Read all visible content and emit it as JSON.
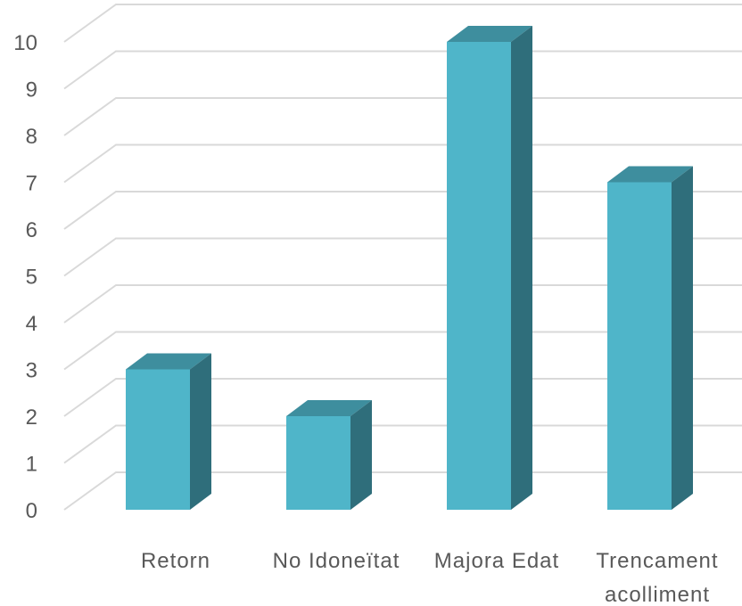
{
  "chart_data": {
    "type": "bar",
    "style": "3d-column",
    "title": "",
    "xlabel": "",
    "ylabel": "",
    "categories": [
      [
        "Retorn"
      ],
      [
        "No Idoneïtat"
      ],
      [
        "Majora Edat"
      ],
      [
        "Trencament",
        "acolliment"
      ]
    ],
    "values": [
      3,
      2,
      10,
      7
    ],
    "ylim": [
      0,
      10
    ],
    "yticks": [
      0,
      1,
      2,
      3,
      4,
      5,
      6,
      7,
      8,
      9,
      10
    ],
    "grid": true,
    "legend": "none",
    "colors": {
      "front": "#4fb5c9",
      "top": "#3e8e9e",
      "side": "#2f6e7b",
      "grid": "#d9d9d9",
      "text": "#595959"
    }
  }
}
